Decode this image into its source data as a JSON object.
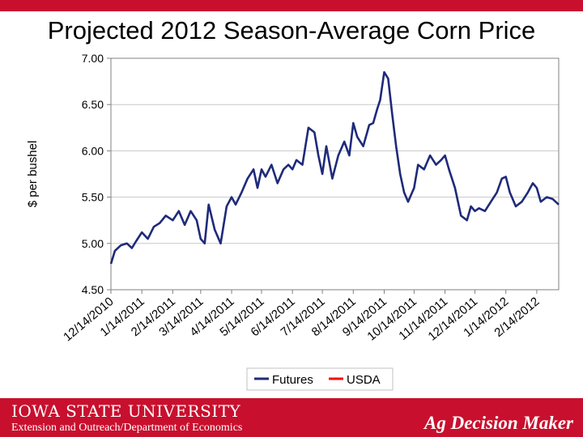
{
  "title": "Projected 2012 Season-Average Corn Price",
  "footer": {
    "university": "IOWA STATE UNIVERSITY",
    "department": "Extension and Outreach/Department of Economics",
    "brand": "Ag Decision Maker"
  },
  "colors": {
    "accent": "#c8102e",
    "futures": "#1f2a7a",
    "usda": "#ff0000"
  },
  "chart_data": {
    "type": "line",
    "title": "Projected 2012 Season-Average Corn Price",
    "ylabel": "$ per bushel",
    "xlabel": "",
    "ylim": [
      4.5,
      7.0
    ],
    "yticks": [
      "4.50",
      "5.00",
      "5.50",
      "6.00",
      "6.50",
      "7.00"
    ],
    "xticks": [
      "12/14/2010",
      "1/14/2011",
      "2/14/2011",
      "3/14/2011",
      "4/14/2011",
      "5/14/2011",
      "6/14/2011",
      "7/14/2011",
      "8/14/2011",
      "9/14/2011",
      "10/14/2011",
      "11/14/2011",
      "12/14/2011",
      "1/14/2012",
      "2/14/2012"
    ],
    "xrange": [
      "2010-12-14",
      "2012-03-07"
    ],
    "grid": "horizontal",
    "legend_position": "bottom",
    "series": [
      {
        "name": "Futures",
        "color": "#1f2a7a",
        "x": [
          "2010-12-14",
          "2010-12-18",
          "2010-12-24",
          "2010-12-30",
          "2011-01-04",
          "2011-01-08",
          "2011-01-14",
          "2011-01-20",
          "2011-01-26",
          "2011-02-01",
          "2011-02-07",
          "2011-02-14",
          "2011-02-20",
          "2011-02-26",
          "2011-03-04",
          "2011-03-10",
          "2011-03-14",
          "2011-03-18",
          "2011-03-22",
          "2011-03-28",
          "2011-04-03",
          "2011-04-09",
          "2011-04-14",
          "2011-04-18",
          "2011-04-24",
          "2011-04-30",
          "2011-05-06",
          "2011-05-10",
          "2011-05-14",
          "2011-05-18",
          "2011-05-24",
          "2011-05-30",
          "2011-06-05",
          "2011-06-10",
          "2011-06-14",
          "2011-06-18",
          "2011-06-24",
          "2011-06-30",
          "2011-07-06",
          "2011-07-10",
          "2011-07-14",
          "2011-07-18",
          "2011-07-24",
          "2011-07-30",
          "2011-08-05",
          "2011-08-10",
          "2011-08-14",
          "2011-08-18",
          "2011-08-24",
          "2011-08-30",
          "2011-09-03",
          "2011-09-07",
          "2011-09-10",
          "2011-09-14",
          "2011-09-18",
          "2011-09-22",
          "2011-09-26",
          "2011-09-30",
          "2011-10-04",
          "2011-10-08",
          "2011-10-14",
          "2011-10-18",
          "2011-10-24",
          "2011-10-30",
          "2011-11-05",
          "2011-11-10",
          "2011-11-14",
          "2011-11-18",
          "2011-11-24",
          "2011-11-30",
          "2011-12-06",
          "2011-12-10",
          "2011-12-14",
          "2011-12-18",
          "2011-12-24",
          "2011-12-30",
          "2012-01-05",
          "2012-01-10",
          "2012-01-14",
          "2012-01-18",
          "2012-01-24",
          "2012-01-30",
          "2012-02-05",
          "2012-02-10",
          "2012-02-14",
          "2012-02-18",
          "2012-02-24",
          "2012-03-01",
          "2012-03-07"
        ],
        "values": [
          4.78,
          4.92,
          4.98,
          5.0,
          4.95,
          5.02,
          5.12,
          5.05,
          5.18,
          5.22,
          5.3,
          5.25,
          5.35,
          5.2,
          5.35,
          5.25,
          5.05,
          5.0,
          5.42,
          5.15,
          5.0,
          5.4,
          5.5,
          5.42,
          5.55,
          5.7,
          5.8,
          5.6,
          5.8,
          5.72,
          5.85,
          5.65,
          5.8,
          5.85,
          5.8,
          5.9,
          5.85,
          6.25,
          6.2,
          5.95,
          5.75,
          6.05,
          5.7,
          5.95,
          6.1,
          5.95,
          6.3,
          6.15,
          6.05,
          6.28,
          6.3,
          6.45,
          6.55,
          6.85,
          6.78,
          6.4,
          6.05,
          5.75,
          5.55,
          5.45,
          5.6,
          5.85,
          5.8,
          5.95,
          5.85,
          5.9,
          5.95,
          5.8,
          5.6,
          5.3,
          5.25,
          5.4,
          5.35,
          5.38,
          5.35,
          5.45,
          5.55,
          5.7,
          5.72,
          5.55,
          5.4,
          5.45,
          5.55,
          5.65,
          5.6,
          5.45,
          5.5,
          5.48,
          5.42
        ]
      },
      {
        "name": "USDA",
        "color": "#ff0000",
        "x": [],
        "values": []
      }
    ]
  }
}
